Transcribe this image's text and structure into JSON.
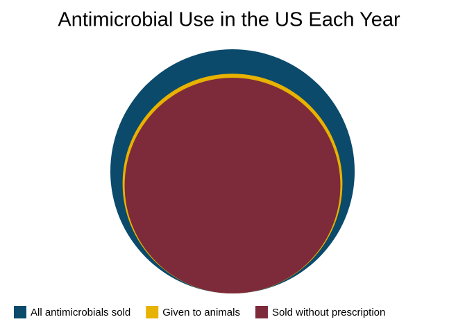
{
  "chart_data": {
    "type": "circles",
    "title": "Antimicrobial Use in the US Each Year",
    "series": [
      {
        "name": "All antimicrobials sold",
        "color": "#0b4a6b",
        "values": [
          100
        ]
      },
      {
        "name": "Given to animals",
        "color": "#e8b200",
        "values": [
          81
        ]
      },
      {
        "name": "Sold without prescription",
        "color": "#7d2b3a",
        "values": [
          78
        ]
      }
    ],
    "legend": "bottom"
  }
}
